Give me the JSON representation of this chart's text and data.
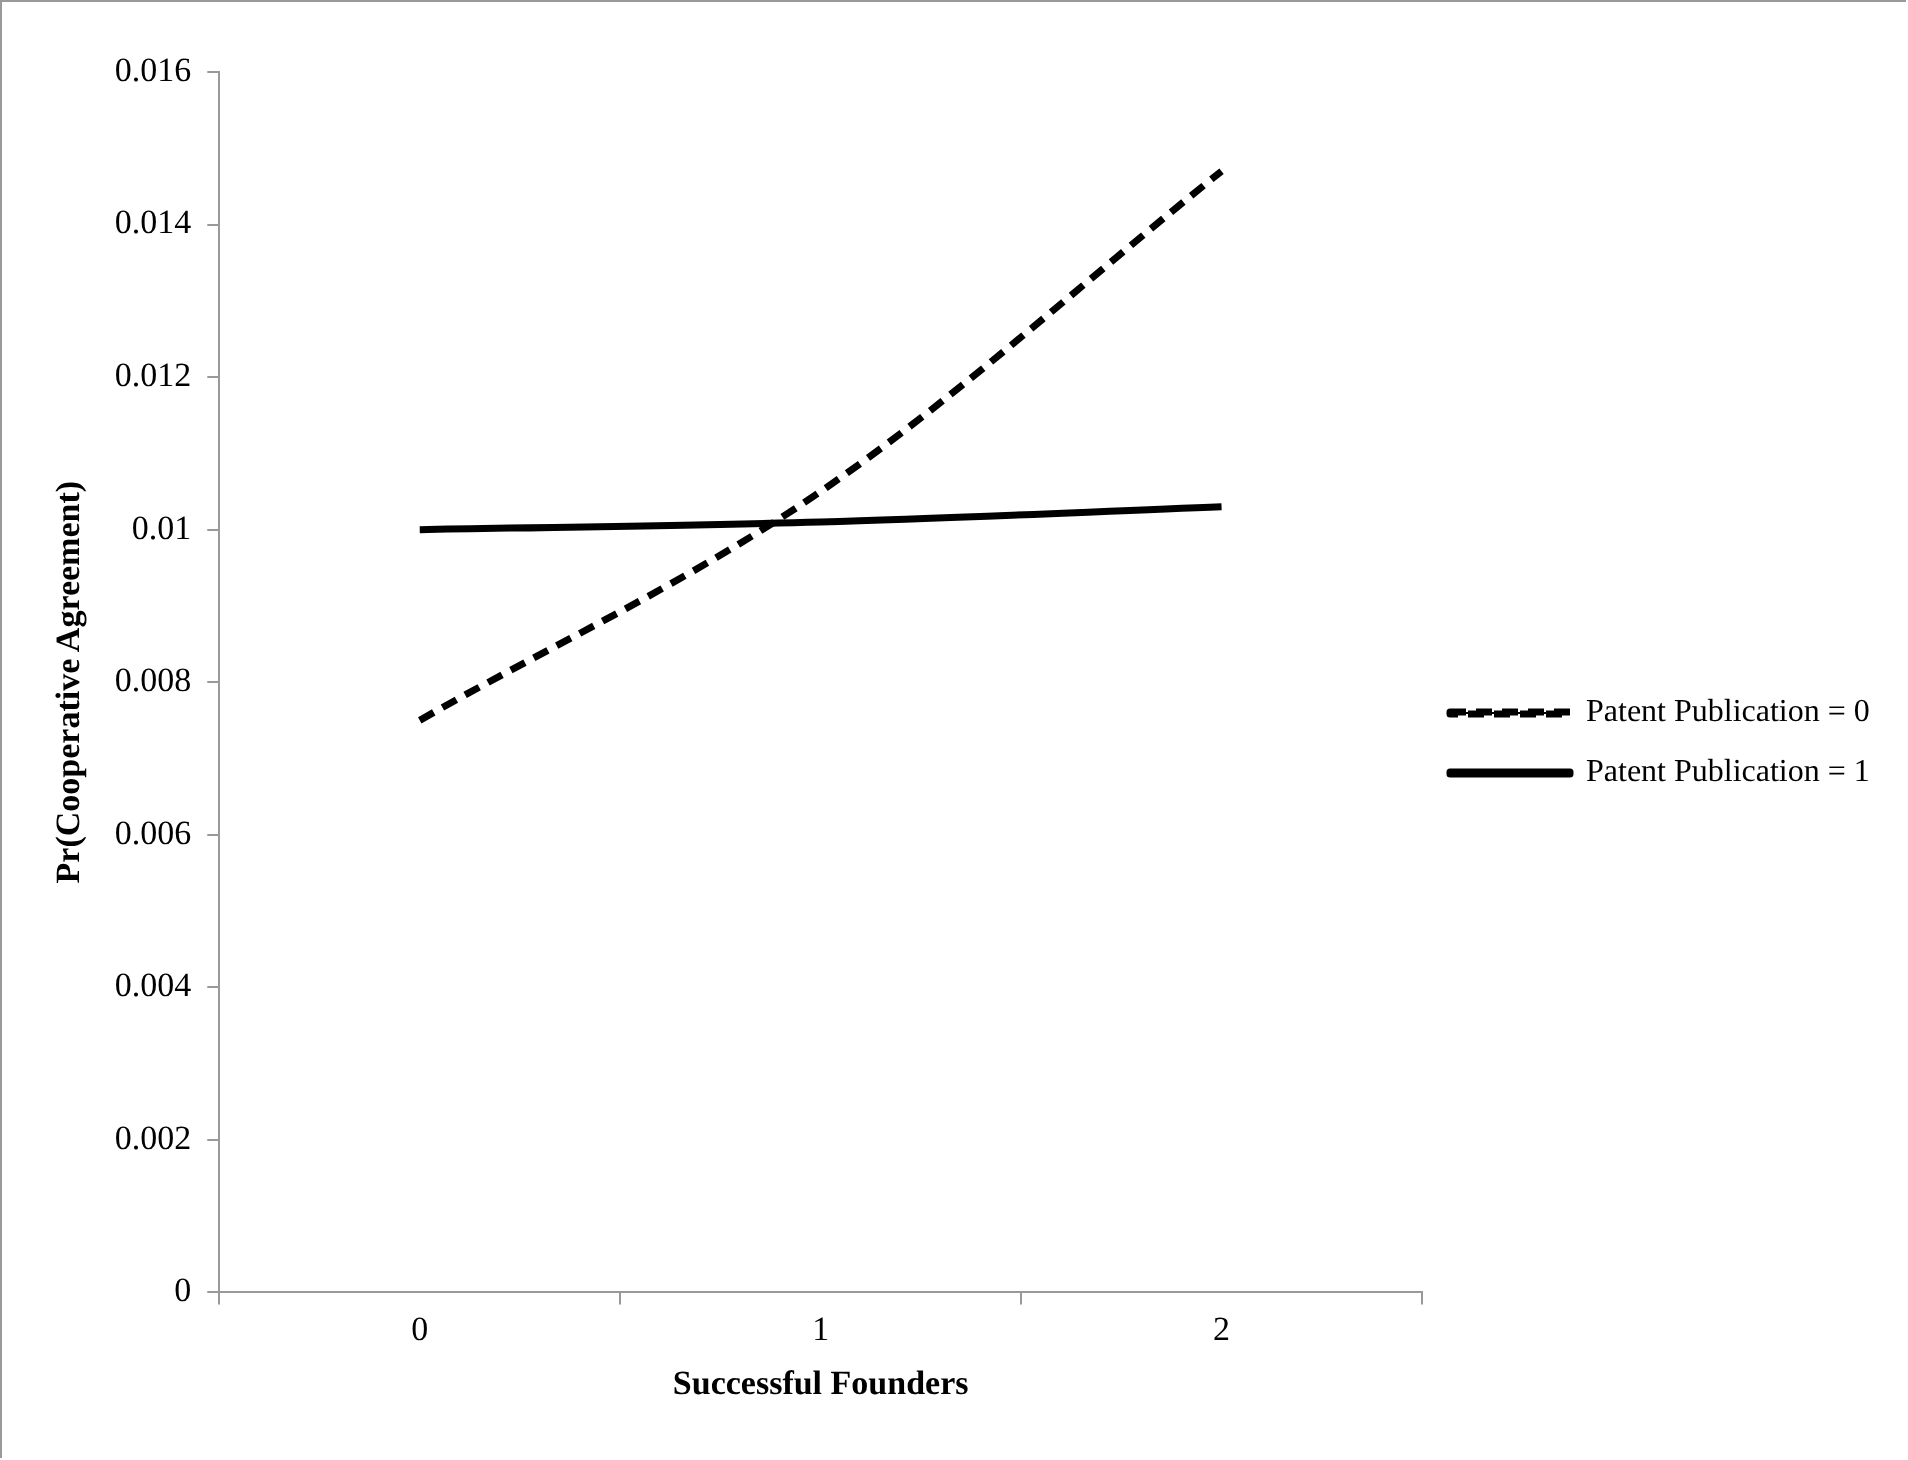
{
  "chart_data": {
    "type": "line",
    "xlabel": "Successful Founders",
    "ylabel": "Pr(Cooperative Agreement)",
    "categories": [
      "0",
      "1",
      "2"
    ],
    "series": [
      {
        "name": "Patent Publication = 0",
        "color": "#000000",
        "line_style": "dashed",
        "values": [
          0.0075,
          0.0105,
          0.0147
        ]
      },
      {
        "name": "Patent Publication = 1",
        "color": "#000000",
        "line_style": "solid",
        "values": [
          0.01,
          0.0101,
          0.0103
        ]
      }
    ],
    "ylim": [
      0,
      0.016
    ],
    "yticks": [
      0,
      0.002,
      0.004,
      0.006,
      0.008,
      0.01,
      0.012,
      0.014,
      0.016
    ],
    "grid": false,
    "legend": "right",
    "marker": "none"
  }
}
